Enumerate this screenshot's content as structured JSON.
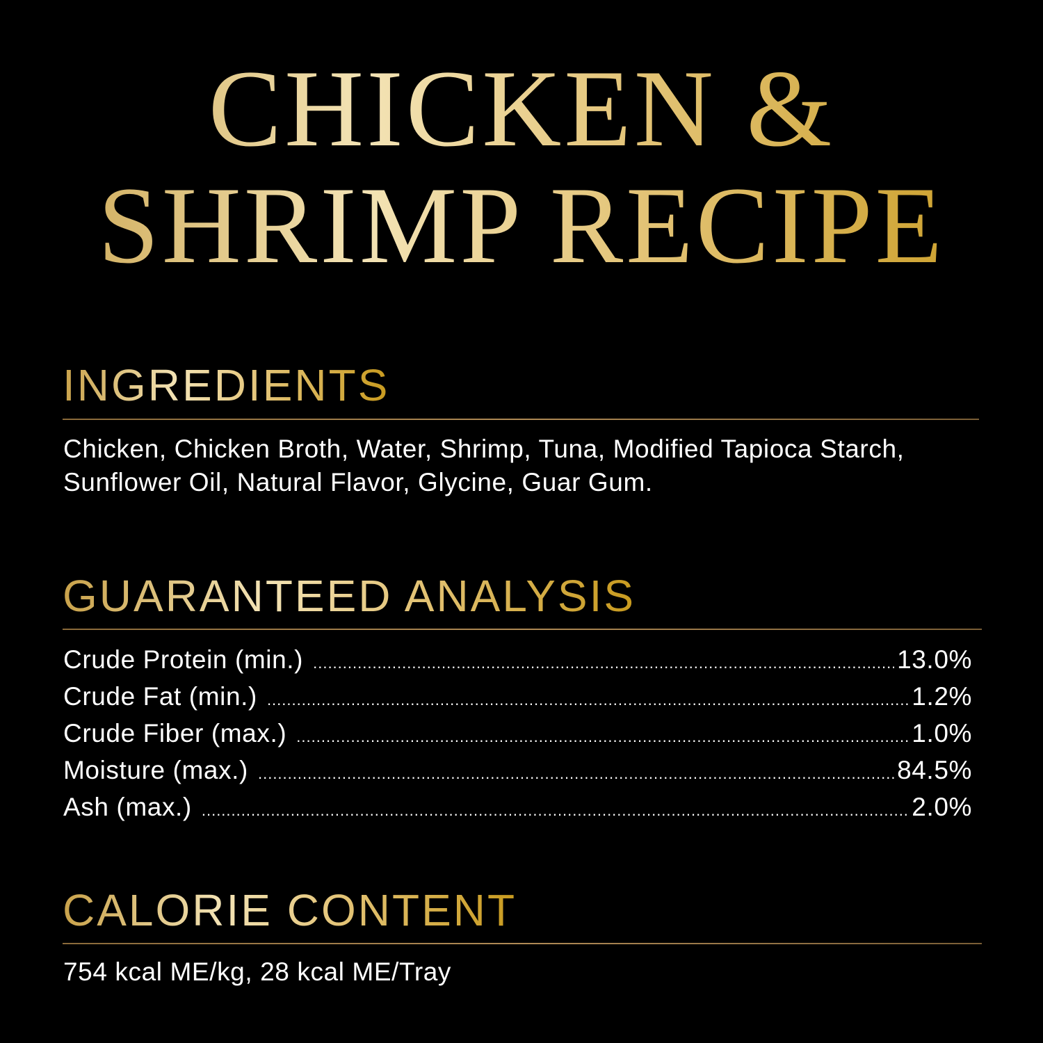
{
  "title": {
    "line1": "CHICKEN &",
    "line2": "SHRIMP RECIPE"
  },
  "colors": {
    "background": "#000000",
    "gold": "#d4af5a",
    "text": "#ffffff"
  },
  "ingredients": {
    "heading": "INGREDIENTS",
    "lines": [
      "Chicken, Chicken Broth, Water, Shrimp, Tuna, Modified Tapioca Starch,",
      "Sunflower Oil, Natural Flavor, Glycine, Guar Gum."
    ]
  },
  "analysis": {
    "heading": "GUARANTEED ANALYSIS",
    "rows": [
      {
        "label": "Crude Protein (min.)",
        "value": "13.0%"
      },
      {
        "label": "Crude Fat (min.)",
        "value": "1.2%"
      },
      {
        "label": "Crude Fiber (max.)",
        "value": "1.0%"
      },
      {
        "label": "Moisture (max.)",
        "value": "84.5%"
      },
      {
        "label": "Ash (max.)",
        "value": "2.0%"
      }
    ]
  },
  "calories": {
    "heading": "CALORIE CONTENT",
    "text": "754 kcal ME/kg, 28 kcal ME/Tray"
  }
}
